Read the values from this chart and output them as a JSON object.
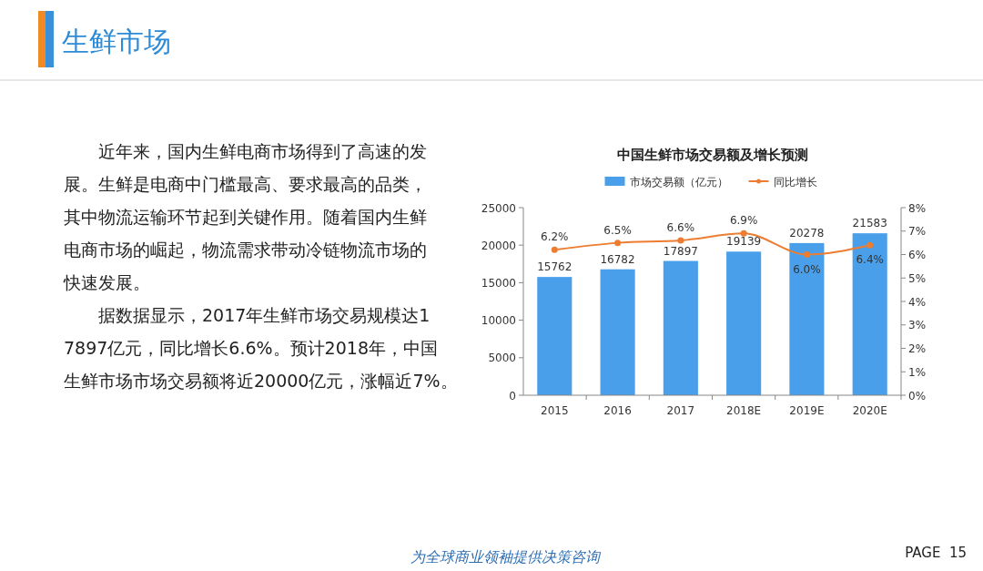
{
  "chart_data": {
    "type": "bar",
    "title": "中国生鲜市场交易额及增长预测",
    "categories": [
      "2015",
      "2016",
      "2017",
      "2018E",
      "2019E",
      "2020E"
    ],
    "series": [
      {
        "name": "市场交易额（亿元）",
        "color": "#4a9fea",
        "values": [
          15762,
          16782,
          17897,
          19139,
          20278,
          21583
        ]
      },
      {
        "name": "同比增长",
        "type": "line",
        "axis": "y2",
        "color": "#ed7d31",
        "values": [
          6.2,
          6.5,
          6.6,
          6.9,
          6.0,
          6.4
        ],
        "value_labels": [
          "6.2%",
          "6.5%",
          "6.6%",
          "6.9%",
          "6.0%",
          "6.4%"
        ]
      }
    ],
    "ylim": [
      0,
      25000
    ],
    "yticks": [
      0,
      5000,
      10000,
      15000,
      20000,
      25000
    ],
    "y2lim": [
      0,
      8
    ],
    "y2ticks": [
      {
        "value": 0,
        "label": "0%"
      },
      {
        "value": 1,
        "label": "1%"
      },
      {
        "value": 2,
        "label": "2%"
      },
      {
        "value": 3,
        "label": "3%"
      },
      {
        "value": 4,
        "label": "4%"
      },
      {
        "value": 5,
        "label": "5%"
      },
      {
        "value": 6,
        "label": "6%"
      },
      {
        "value": 7,
        "label": "7%"
      },
      {
        "value": 8,
        "label": "8%"
      }
    ],
    "data_labels": true,
    "legend": "top",
    "marker": "circle",
    "grid": false,
    "annotations": [
      "生鲜市场",
      "近年来，国内生鲜电商市场得到了高速的发展。生鲜是电商中门槛最高、要求最高的品类，其中物流运输环节起到关键作用。随着国内生鲜电商市场的崛起，物流需求带动冷链物流市场的快速发展。",
      "据数据显示，2017年生鲜市场交易规模达17897亿元，同比增长6.6%。预计2018年，中国生鲜市场市场交易额将近20000亿元，涨幅近7%。",
      "为全球商业领袖提供决策咨询",
      "PAGE  15"
    ]
  }
}
